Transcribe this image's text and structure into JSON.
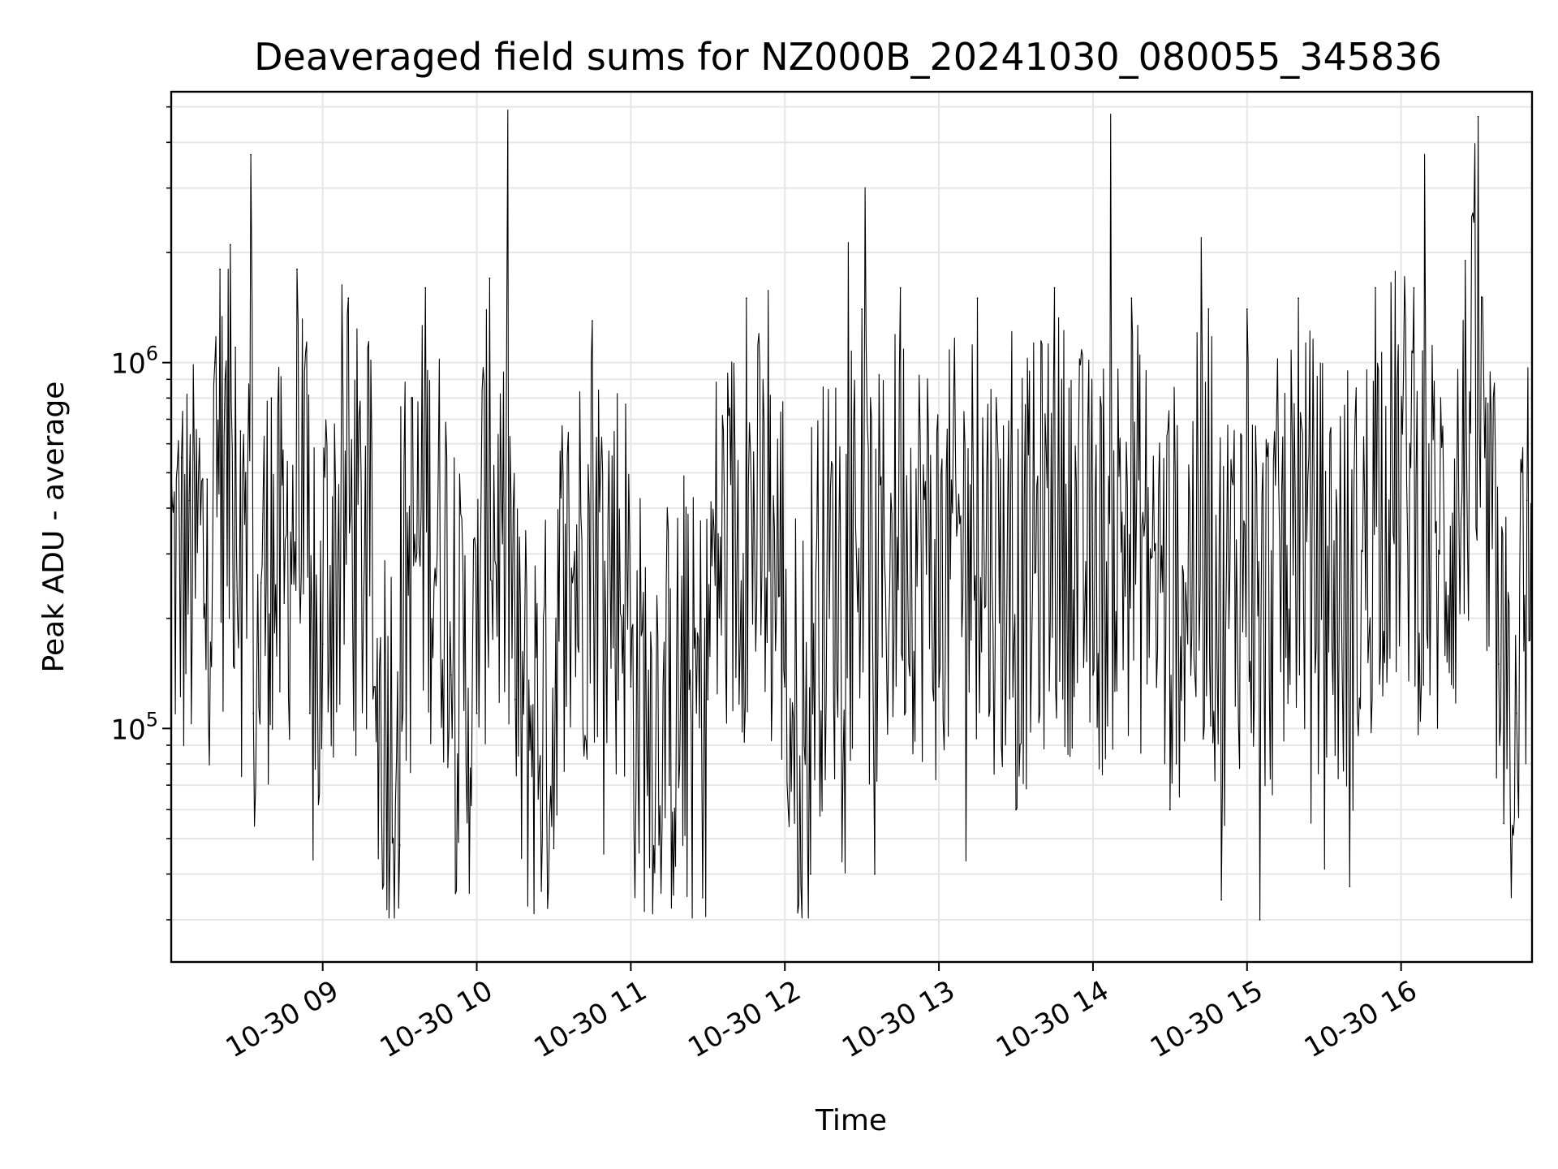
{
  "chart_data": {
    "type": "line",
    "title": "Deaveraged field sums for NZ000B_20241030_080055_345836",
    "xlabel": "Time",
    "ylabel": "Peak ADU - average",
    "y_scale": "log",
    "x_range": [
      "2024-10-30T08:01",
      "2024-10-30T16:51"
    ],
    "ylim": [
      23000,
      5500000
    ],
    "grid": true,
    "line_color": "#000000",
    "grid_color": "#e6e6e6",
    "x_ticks": [
      {
        "value": "2024-10-30T09:00",
        "label": "10-30 09"
      },
      {
        "value": "2024-10-30T10:00",
        "label": "10-30 10"
      },
      {
        "value": "2024-10-30T11:00",
        "label": "10-30 11"
      },
      {
        "value": "2024-10-30T12:00",
        "label": "10-30 12"
      },
      {
        "value": "2024-10-30T13:00",
        "label": "10-30 13"
      },
      {
        "value": "2024-10-30T14:00",
        "label": "10-30 14"
      },
      {
        "value": "2024-10-30T15:00",
        "label": "10-30 15"
      },
      {
        "value": "2024-10-30T16:00",
        "label": "10-30 16"
      }
    ],
    "y_major_ticks": [
      {
        "value": 100000,
        "base": "10",
        "exp": "5"
      },
      {
        "value": 1000000,
        "base": "10",
        "exp": "6"
      }
    ],
    "y_minor_ticks": [
      30000,
      40000,
      50000,
      60000,
      70000,
      80000,
      90000,
      200000,
      300000,
      400000,
      500000,
      600000,
      700000,
      800000,
      900000,
      2000000,
      3000000,
      4000000,
      5000000
    ],
    "series": [
      {
        "points": [
          [
            "2024-10-30T08:01",
            500000
          ],
          [
            "2024-10-30T08:05",
            550000
          ],
          [
            "2024-10-30T08:08",
            420000
          ],
          [
            "2024-10-30T08:12",
            620000
          ],
          [
            "2024-10-30T08:15",
            480000
          ],
          [
            "2024-10-30T08:18",
            1000000
          ],
          [
            "2024-10-30T08:20",
            1800000
          ],
          [
            "2024-10-30T08:22",
            900000
          ],
          [
            "2024-10-30T08:24",
            2100000
          ],
          [
            "2024-10-30T08:26",
            1100000
          ],
          [
            "2024-10-30T08:28",
            650000
          ],
          [
            "2024-10-30T08:30",
            500000
          ],
          [
            "2024-10-30T08:32",
            3700000
          ],
          [
            "2024-10-30T08:33",
            110000
          ],
          [
            "2024-10-30T08:36",
            250000
          ],
          [
            "2024-10-30T08:40",
            800000
          ],
          [
            "2024-10-30T08:45",
            220000
          ],
          [
            "2024-10-30T08:50",
            1800000
          ],
          [
            "2024-10-30T08:55",
            110000
          ],
          [
            "2024-10-30T09:00",
            170000
          ],
          [
            "2024-10-30T09:10",
            1500000
          ],
          [
            "2024-10-30T09:20",
            130000
          ],
          [
            "2024-10-30T09:30",
            48000
          ],
          [
            "2024-10-30T09:40",
            1600000
          ],
          [
            "2024-10-30T09:50",
            140000
          ],
          [
            "2024-10-30T10:00",
            110000
          ],
          [
            "2024-10-30T10:05",
            1700000
          ],
          [
            "2024-10-30T10:15",
            120000
          ],
          [
            "2024-10-30T10:30",
            47000
          ],
          [
            "2024-10-30T10:45",
            1300000
          ],
          [
            "2024-10-30T11:00",
            130000
          ],
          [
            "2024-10-30T11:15",
            70000
          ],
          [
            "2024-10-30T11:30",
            120000
          ],
          [
            "2024-10-30T11:45",
            1500000
          ],
          [
            "2024-10-30T12:00",
            130000
          ],
          [
            "2024-10-30T12:10",
            40000
          ],
          [
            "2024-10-30T12:30",
            1400000
          ],
          [
            "2024-10-30T12:35",
            40000
          ],
          [
            "2024-10-30T12:45",
            1600000
          ],
          [
            "2024-10-30T13:00",
            130000
          ],
          [
            "2024-10-30T13:15",
            1500000
          ],
          [
            "2024-10-30T13:30",
            60000
          ],
          [
            "2024-10-30T13:45",
            1600000
          ],
          [
            "2024-10-30T14:00",
            140000
          ],
          [
            "2024-10-30T14:15",
            1500000
          ],
          [
            "2024-10-30T14:30",
            60000
          ],
          [
            "2024-10-30T14:45",
            1400000
          ],
          [
            "2024-10-30T14:50",
            34000
          ],
          [
            "2024-10-30T15:00",
            1400000
          ],
          [
            "2024-10-30T15:05",
            30000
          ],
          [
            "2024-10-30T15:20",
            1500000
          ],
          [
            "2024-10-30T15:40",
            37000
          ],
          [
            "2024-10-30T15:50",
            1600000
          ],
          [
            "2024-10-30T16:05",
            1600000
          ],
          [
            "2024-10-30T16:15",
            300000
          ],
          [
            "2024-10-30T16:25",
            1900000
          ],
          [
            "2024-10-30T16:30",
            4700000
          ],
          [
            "2024-10-30T16:33",
            800000
          ],
          [
            "2024-10-30T16:38",
            150000
          ],
          [
            "2024-10-30T16:40",
            55000
          ],
          [
            "2024-10-30T16:45",
            110000
          ],
          [
            "2024-10-30T16:49",
            420000
          ],
          [
            "2024-10-30T16:51",
            70000
          ]
        ]
      }
    ]
  }
}
